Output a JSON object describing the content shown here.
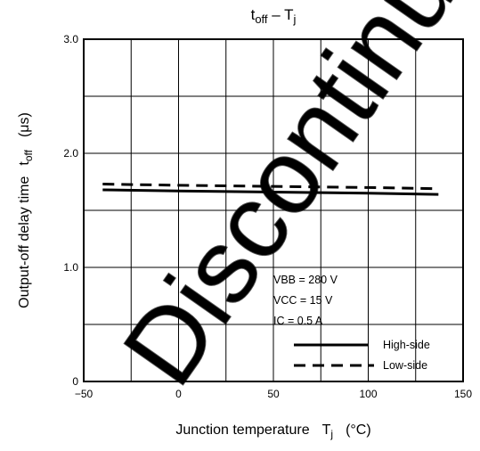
{
  "chart_data": {
    "type": "line",
    "title": {
      "main": "t",
      "sub": "off",
      "sep": " – ",
      "main2": "T",
      "sub2": "j"
    },
    "xlabel": {
      "text": "Junction temperature",
      "sym": "T",
      "sub": "j",
      "unit": "(°C)"
    },
    "ylabel": {
      "text": "Output-off delay time",
      "sym": "t",
      "sub": "off",
      "unit": "(μs)"
    },
    "xlim": [
      -50,
      150
    ],
    "ylim": [
      0,
      3.0
    ],
    "x_ticks": [
      "−50",
      "0",
      "50",
      "100",
      "150"
    ],
    "y_ticks": [
      "0",
      "1.0",
      "2.0",
      "3.0"
    ],
    "grid": true,
    "conditions": [
      "VBB = 280 V",
      "VCC = 15 V",
      "IC = 0.5 A"
    ],
    "series": [
      {
        "name": "High-side",
        "style": "solid",
        "color": "#000000",
        "x": [
          -40,
          0,
          50,
          100,
          137
        ],
        "y": [
          1.68,
          1.67,
          1.66,
          1.65,
          1.64
        ]
      },
      {
        "name": "Low-side",
        "style": "dashed",
        "color": "#000000",
        "x": [
          -40,
          0,
          50,
          100,
          137
        ],
        "y": [
          1.73,
          1.72,
          1.71,
          1.7,
          1.69
        ]
      }
    ],
    "legend_position": "bottom-right",
    "watermark": "Discontinued"
  }
}
